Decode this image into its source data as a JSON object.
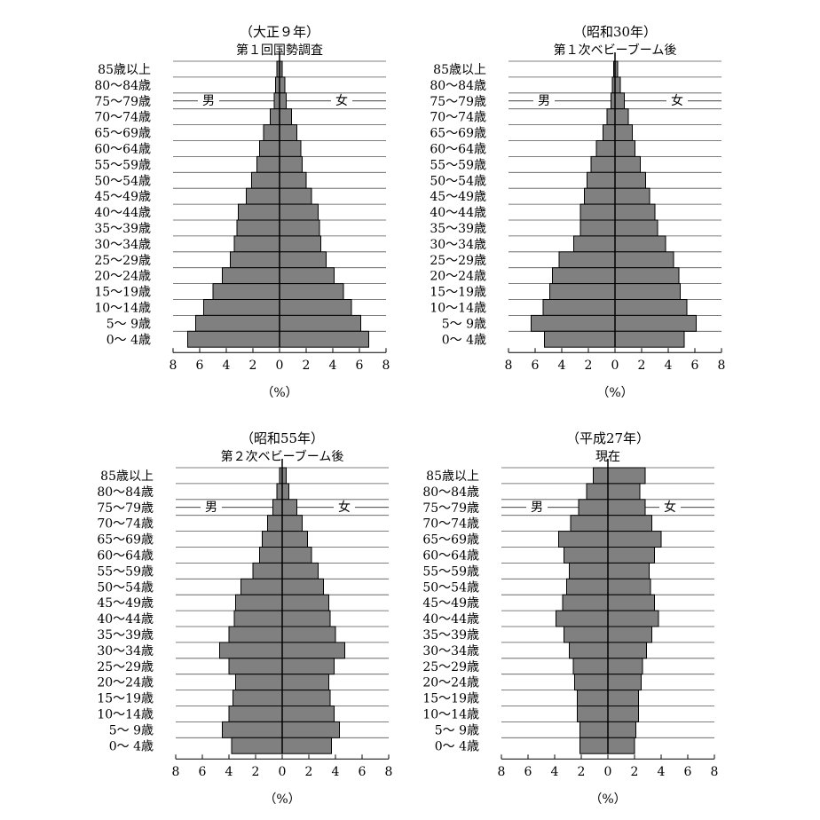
{
  "chart_data": [
    {
      "type": "pyramid",
      "title": "（大正９年）",
      "subtitle": "第１回国勢調査",
      "xlabel": "（%）",
      "categories": [
        "85歳以上",
        "80〜84歳",
        "75〜79歳",
        "70〜74歳",
        "65〜69歳",
        "60〜64歳",
        "55〜59歳",
        "50〜54歳",
        "45〜49歳",
        "40〜44歳",
        "35〜39歳",
        "30〜34歳",
        "25〜29歳",
        "20〜24歳",
        "15〜19歳",
        "10〜14歳",
        "5〜 9歳",
        "0〜 4歳"
      ],
      "series": [
        {
          "name": "男",
          "color": "#808080",
          "values": [
            0.2,
            0.3,
            0.4,
            0.7,
            1.2,
            1.5,
            1.7,
            2.1,
            2.5,
            3.1,
            3.2,
            3.4,
            3.7,
            4.3,
            5.0,
            5.7,
            6.3,
            6.9
          ]
        },
        {
          "name": "女",
          "color": "#808080",
          "values": [
            0.2,
            0.4,
            0.5,
            0.9,
            1.3,
            1.6,
            1.7,
            2.0,
            2.4,
            2.9,
            3.0,
            3.1,
            3.5,
            4.1,
            4.8,
            5.4,
            6.1,
            6.7
          ]
        }
      ],
      "xlim": [
        -8,
        8
      ],
      "xticks": [
        {
          "value": -8,
          "label": "8"
        },
        {
          "value": -6,
          "label": "6"
        },
        {
          "value": -4,
          "label": "4"
        },
        {
          "value": -2,
          "label": "2"
        },
        0,
        2,
        4,
        6,
        8
      ],
      "grid": true
    },
    {
      "type": "pyramid",
      "title": "（昭和30年）",
      "subtitle": "第１次ベビーブーム後",
      "xlabel": "（%）",
      "categories": [
        "85歳以上",
        "80〜84歳",
        "75〜79歳",
        "70〜74歳",
        "65〜69歳",
        "60〜64歳",
        "55〜59歳",
        "50〜54歳",
        "45〜49歳",
        "40〜44歳",
        "35〜39歳",
        "30〜34歳",
        "25〜29歳",
        "20〜24歳",
        "15〜19歳",
        "10〜14歳",
        "5〜 9歳",
        "0〜 4歳"
      ],
      "series": [
        {
          "name": "男",
          "color": "#808080",
          "values": [
            0.1,
            0.2,
            0.3,
            0.6,
            0.9,
            1.4,
            1.8,
            2.1,
            2.3,
            2.6,
            2.6,
            3.1,
            4.2,
            4.7,
            4.9,
            5.4,
            6.3,
            5.3
          ]
        },
        {
          "name": "女",
          "color": "#808080",
          "values": [
            0.2,
            0.4,
            0.7,
            1.0,
            1.3,
            1.5,
            1.9,
            2.3,
            2.6,
            3.0,
            3.2,
            3.8,
            4.4,
            4.8,
            4.9,
            5.4,
            6.1,
            5.2
          ]
        }
      ],
      "xlim": [
        -8,
        8
      ],
      "xticks": [
        {
          "value": -8,
          "label": "8"
        },
        {
          "value": -6,
          "label": "6"
        },
        {
          "value": -4,
          "label": "4"
        },
        {
          "value": -2,
          "label": "2"
        },
        0,
        2,
        4,
        6,
        8
      ],
      "grid": true
    },
    {
      "type": "pyramid",
      "title": "（昭和55年）",
      "subtitle": "第２次ベビーブーム後",
      "xlabel": "（%）",
      "categories": [
        "85歳以上",
        "80〜84歳",
        "75〜79歳",
        "70〜74歳",
        "65〜69歳",
        "60〜64歳",
        "55〜59歳",
        "50〜54歳",
        "45〜49歳",
        "40〜44歳",
        "35〜39歳",
        "30〜34歳",
        "25〜29歳",
        "20〜24歳",
        "15〜19歳",
        "10〜14歳",
        "5〜 9歳",
        "0〜 4歳"
      ],
      "series": [
        {
          "name": "男",
          "color": "#808080",
          "values": [
            0.2,
            0.4,
            0.7,
            1.1,
            1.5,
            1.7,
            2.2,
            3.1,
            3.5,
            3.6,
            4.0,
            4.7,
            4.0,
            3.5,
            3.7,
            4.0,
            4.5,
            3.8
          ]
        },
        {
          "name": "女",
          "color": "#808080",
          "values": [
            0.3,
            0.5,
            1.1,
            1.5,
            1.9,
            2.2,
            2.7,
            3.1,
            3.5,
            3.6,
            4.0,
            4.7,
            3.9,
            3.5,
            3.6,
            3.9,
            4.3,
            3.7
          ]
        }
      ],
      "xlim": [
        -8,
        8
      ],
      "xticks": [
        {
          "value": -8,
          "label": "8"
        },
        {
          "value": -6,
          "label": "6"
        },
        {
          "value": -4,
          "label": "4"
        },
        {
          "value": -2,
          "label": "2"
        },
        0,
        2,
        4,
        6,
        8
      ],
      "grid": true
    },
    {
      "type": "pyramid",
      "title": "（平成27年）",
      "subtitle": "現在",
      "xlabel": "（%）",
      "categories": [
        "85歳以上",
        "80〜84歳",
        "75〜79歳",
        "70〜74歳",
        "65〜69歳",
        "60〜64歳",
        "55〜59歳",
        "50〜54歳",
        "45〜49歳",
        "40〜44歳",
        "35〜39歳",
        "30〜34歳",
        "25〜29歳",
        "20〜24歳",
        "15〜19歳",
        "10〜14歳",
        "5〜 9歳",
        "0〜 4歳"
      ],
      "series": [
        {
          "name": "男",
          "color": "#808080",
          "values": [
            1.1,
            1.6,
            2.2,
            2.8,
            3.7,
            3.3,
            2.9,
            3.1,
            3.4,
            3.9,
            3.3,
            2.9,
            2.6,
            2.5,
            2.3,
            2.3,
            2.1,
            2.1
          ]
        },
        {
          "name": "女",
          "color": "#808080",
          "values": [
            2.8,
            2.4,
            2.8,
            3.3,
            4.0,
            3.5,
            3.1,
            3.2,
            3.5,
            3.8,
            3.3,
            2.9,
            2.6,
            2.5,
            2.3,
            2.3,
            2.1,
            2.0
          ]
        }
      ],
      "xlim": [
        -8,
        8
      ],
      "xticks": [
        {
          "value": -8,
          "label": "8"
        },
        {
          "value": -6,
          "label": "6"
        },
        {
          "value": -4,
          "label": "4"
        },
        {
          "value": -2,
          "label": "2"
        },
        0,
        2,
        4,
        6,
        8
      ],
      "grid": true
    }
  ]
}
